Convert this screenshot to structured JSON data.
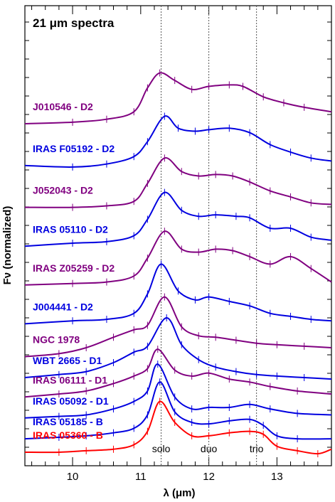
{
  "chart_data": {
    "type": "line",
    "title": "21 μm spectra",
    "xlabel": "λ (μm)",
    "ylabel": "Fν (normalized)",
    "xlim": [
      9.3,
      13.8
    ],
    "x_ticks": [
      10,
      11,
      12,
      13
    ],
    "grid": false,
    "reference_lines": [
      {
        "x": 11.3,
        "label": "solo"
      },
      {
        "x": 12.0,
        "label": "duo"
      },
      {
        "x": 12.7,
        "label": "trio"
      }
    ],
    "colors": {
      "purple": "#800080",
      "blue": "#0000e0",
      "red": "#ff0000"
    },
    "series": [
      {
        "name": "J010546 - D2",
        "color": "#800080",
        "offset": 11.0,
        "x": [
          9.3,
          10.0,
          10.5,
          10.9,
          11.1,
          11.28,
          11.5,
          11.75,
          12.0,
          12.3,
          12.5,
          12.8,
          13.1,
          13.4,
          13.8
        ],
        "y": [
          0.0,
          0.05,
          0.15,
          0.4,
          1.2,
          1.7,
          1.45,
          1.15,
          1.25,
          1.3,
          1.25,
          0.9,
          0.7,
          0.55,
          0.4
        ]
      },
      {
        "name": "IRAS F05192 - D2",
        "color": "#0000e0",
        "offset": 9.6,
        "x": [
          9.3,
          10.0,
          10.5,
          10.9,
          11.1,
          11.35,
          11.55,
          11.8,
          12.0,
          12.3,
          12.6,
          12.9,
          13.2,
          13.5,
          13.8
        ],
        "y": [
          0.0,
          -0.05,
          0.05,
          0.3,
          0.8,
          1.65,
          1.25,
          1.15,
          1.2,
          1.25,
          1.1,
          0.7,
          0.45,
          0.25,
          0.15
        ]
      },
      {
        "name": "J052043 - D2",
        "color": "#800080",
        "offset": 8.2,
        "x": [
          9.3,
          10.0,
          10.5,
          10.9,
          11.1,
          11.35,
          11.6,
          11.85,
          12.1,
          12.35,
          12.6,
          12.9,
          13.2,
          13.5,
          13.8
        ],
        "y": [
          0.0,
          0.0,
          0.05,
          0.2,
          0.8,
          1.65,
          1.2,
          1.05,
          1.1,
          1.05,
          0.85,
          0.55,
          0.35,
          0.15,
          0.1
        ]
      },
      {
        "name": "IRAS 05110 - D2",
        "color": "#0000e0",
        "offset": 6.9,
        "x": [
          9.3,
          10.0,
          10.5,
          10.9,
          11.1,
          11.35,
          11.6,
          11.85,
          12.1,
          12.4,
          12.6,
          12.9,
          13.2,
          13.5,
          13.8
        ],
        "y": [
          0.0,
          0.1,
          0.15,
          0.35,
          0.9,
          1.8,
          1.2,
          1.0,
          1.05,
          1.0,
          0.95,
          0.6,
          0.6,
          0.3,
          0.2
        ]
      },
      {
        "name": "IRAS Z05259 - D2",
        "color": "#800080",
        "offset": 5.6,
        "x": [
          9.3,
          10.0,
          10.5,
          10.9,
          11.1,
          11.35,
          11.6,
          11.85,
          12.1,
          12.35,
          12.6,
          12.9,
          13.2,
          13.5,
          13.8
        ],
        "y": [
          0.0,
          0.05,
          0.1,
          0.3,
          0.9,
          1.8,
          1.2,
          1.1,
          1.2,
          1.15,
          0.95,
          0.7,
          0.95,
          0.55,
          0.1
        ]
      },
      {
        "name": "J004441 - D2",
        "color": "#0000e0",
        "offset": 4.3,
        "x": [
          9.3,
          10.0,
          10.5,
          10.9,
          11.1,
          11.3,
          11.55,
          11.8,
          12.0,
          12.3,
          12.6,
          12.9,
          13.2,
          13.5,
          13.8
        ],
        "y": [
          0.0,
          0.1,
          0.15,
          0.35,
          1.0,
          2.0,
          1.1,
          0.8,
          0.9,
          0.75,
          0.6,
          0.35,
          0.25,
          0.15,
          0.1
        ]
      },
      {
        "name": "NGC 1978",
        "color": "#800080",
        "offset": 3.2,
        "x": [
          9.3,
          9.8,
          10.2,
          10.6,
          10.9,
          11.1,
          11.35,
          11.6,
          11.85,
          12.1,
          12.4,
          12.7,
          13.0,
          13.4,
          13.8
        ],
        "y": [
          0.0,
          0.1,
          0.3,
          0.65,
          0.9,
          1.05,
          2.0,
          1.0,
          0.7,
          0.65,
          0.55,
          0.45,
          0.4,
          0.35,
          0.3
        ]
      },
      {
        "name": "WBT 2665 - D1",
        "color": "#0000e0",
        "offset": 2.5,
        "x": [
          9.3,
          9.8,
          10.2,
          10.6,
          10.9,
          11.1,
          11.38,
          11.6,
          11.85,
          12.1,
          12.4,
          12.7,
          13.0,
          13.4,
          13.8
        ],
        "y": [
          0.0,
          0.1,
          0.2,
          0.5,
          0.85,
          1.05,
          2.0,
          1.1,
          0.6,
          0.35,
          0.2,
          0.1,
          0.05,
          0.0,
          -0.05
        ]
      },
      {
        "name": "IRAS 06111 - D1",
        "color": "#800080",
        "offset": 1.85,
        "x": [
          9.3,
          9.8,
          10.2,
          10.6,
          10.9,
          11.1,
          11.25,
          11.5,
          11.75,
          12.0,
          12.3,
          12.6,
          12.9,
          13.3,
          13.8
        ],
        "y": [
          0.0,
          0.1,
          0.2,
          0.45,
          0.7,
          0.95,
          1.6,
          0.9,
          0.7,
          0.8,
          0.6,
          0.5,
          0.35,
          0.2,
          0.1
        ]
      },
      {
        "name": "IRAS 05092 - D1",
        "color": "#0000e0",
        "offset": 1.15,
        "x": [
          9.3,
          9.8,
          10.2,
          10.6,
          10.9,
          11.1,
          11.25,
          11.5,
          11.75,
          12.0,
          12.3,
          12.6,
          12.9,
          13.3,
          13.8
        ],
        "y": [
          0.0,
          0.05,
          0.1,
          0.3,
          0.55,
          0.9,
          1.8,
          0.7,
          0.3,
          0.35,
          0.35,
          0.45,
          0.3,
          0.15,
          0.1
        ]
      },
      {
        "name": "IRAS 05185 - B",
        "color": "#0000e0",
        "offset": 0.45,
        "x": [
          9.3,
          9.8,
          10.2,
          10.6,
          10.9,
          11.1,
          11.28,
          11.5,
          11.75,
          12.0,
          12.3,
          12.6,
          12.8,
          13.0,
          13.3,
          13.8
        ],
        "y": [
          0.0,
          0.05,
          0.1,
          0.2,
          0.35,
          0.8,
          1.9,
          0.9,
          0.55,
          0.5,
          0.6,
          0.65,
          0.45,
          0.1,
          0.0,
          0.0
        ]
      },
      {
        "name": "IRAS 05360 - B",
        "color": "#ff0000",
        "offset": 0.0,
        "x": [
          9.3,
          9.8,
          10.2,
          10.6,
          10.9,
          11.1,
          11.28,
          11.5,
          11.75,
          12.0,
          12.3,
          12.6,
          12.8,
          13.0,
          13.3,
          13.6,
          13.8
        ],
        "y": [
          0.0,
          0.0,
          0.05,
          0.1,
          0.25,
          0.7,
          1.7,
          1.0,
          0.55,
          0.55,
          0.65,
          0.7,
          0.6,
          0.2,
          0.05,
          -0.05,
          0.1
        ]
      }
    ]
  }
}
